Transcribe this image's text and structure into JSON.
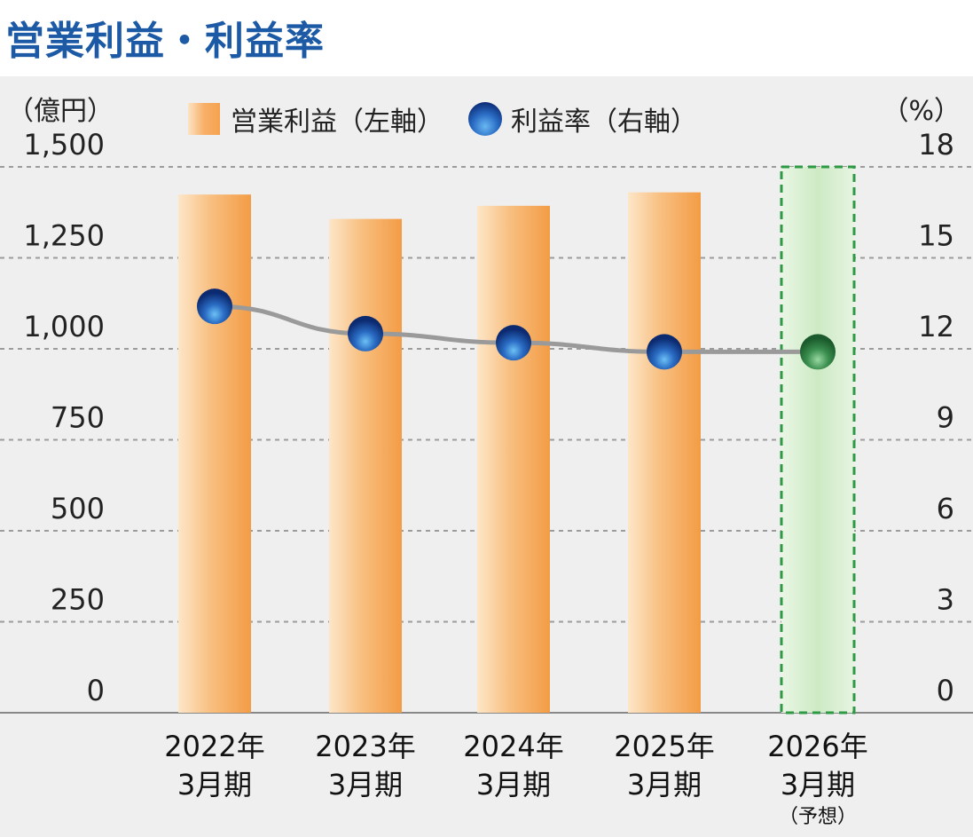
{
  "title": "営業利益・利益率",
  "unit_left": "（億円）",
  "unit_right": "（%）",
  "legend": {
    "bar": "営業利益（左軸）",
    "line": "利益率（右軸）"
  },
  "chart_data": {
    "type": "bar",
    "categories": [
      {
        "year": "2022年",
        "period": "3月期",
        "note": ""
      },
      {
        "year": "2023年",
        "period": "3月期",
        "note": ""
      },
      {
        "year": "2024年",
        "period": "3月期",
        "note": ""
      },
      {
        "year": "2025年",
        "period": "3月期",
        "note": ""
      },
      {
        "year": "2026年",
        "period": "3月期",
        "note": "（予想）"
      }
    ],
    "series": [
      {
        "name": "営業利益（左軸）",
        "axis": "left",
        "type": "bar",
        "values": [
          1424,
          1357,
          1393,
          1430,
          1500
        ]
      },
      {
        "name": "利益率（右軸）",
        "axis": "right",
        "type": "line",
        "values": [
          13.4,
          12.5,
          12.2,
          11.9,
          11.9
        ]
      }
    ],
    "forecast_index": 4,
    "y_left": {
      "min": 0,
      "max": 1500,
      "ticks": [
        "0",
        "250",
        "500",
        "750",
        "1,000",
        "1,250",
        "1,500"
      ]
    },
    "y_right": {
      "min": 0,
      "max": 18,
      "ticks": [
        "0",
        "3",
        "6",
        "9",
        "12",
        "15",
        "18"
      ]
    },
    "grid": true,
    "legend_position": "top-center",
    "colors": {
      "bar_light": "#fde3c3",
      "bar_dark": "#f5a24e",
      "forecast_fill": "#d9efd2",
      "forecast_border": "#2e9a45",
      "line": "#9a9a9a",
      "dot_dark": "#0d2e78",
      "dot_light": "#69b8f3",
      "dot_forecast_dark": "#1e6b32",
      "dot_forecast_light": "#8fd19a",
      "grid": "#9c9c9c"
    }
  }
}
